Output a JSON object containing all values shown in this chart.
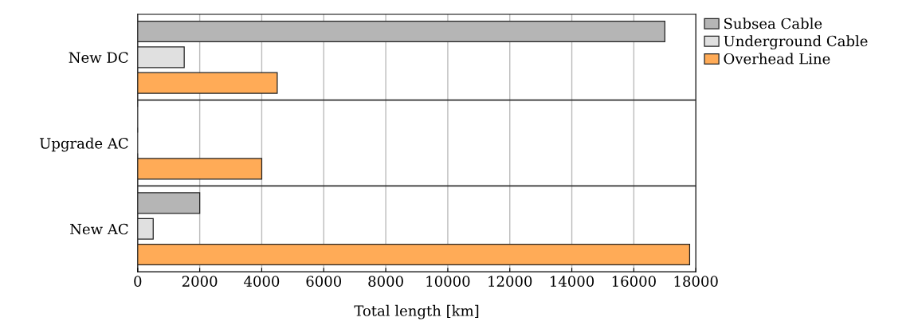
{
  "chart_data": {
    "type": "bar",
    "orientation": "horizontal",
    "xlabel": "Total length [km]",
    "categories": [
      "New DC",
      "Upgrade AC",
      "New AC"
    ],
    "series": [
      {
        "name": "Subsea Cable",
        "color": "#b5b5b5",
        "values": [
          17000,
          0,
          2000
        ]
      },
      {
        "name": "Underground Cable",
        "color": "#e0e0e0",
        "values": [
          1500,
          0,
          500
        ]
      },
      {
        "name": "Overhead Line",
        "color": "#ffab57",
        "values": [
          4500,
          4000,
          17800
        ]
      }
    ],
    "xlim": [
      0,
      18000
    ],
    "xticks": [
      0,
      2000,
      4000,
      6000,
      8000,
      10000,
      12000,
      14000,
      16000,
      18000
    ],
    "grid": "x",
    "legend": "top right"
  }
}
